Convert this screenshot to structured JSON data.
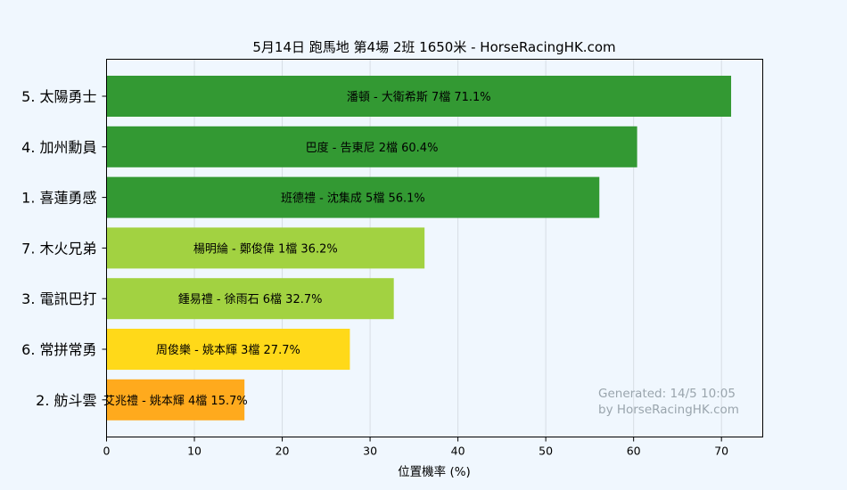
{
  "chart_data": {
    "type": "bar",
    "orientation": "horizontal",
    "title": "5月14日  跑馬地  第4場  2班  1650米 - HorseRacingHK.com",
    "xlabel": "位置機率 (%)",
    "ylabel": "",
    "xlim": [
      0,
      74.7
    ],
    "xticks": [
      0,
      10,
      20,
      30,
      40,
      50,
      60,
      70
    ],
    "grid": true,
    "categories": [
      "5. 太陽勇士",
      "4. 加州勳員",
      "1. 喜蓮勇感",
      "7. 木火兄弟",
      "3. 電訊巴打",
      "6. 常拼常勇",
      "2. 舫斗雲"
    ],
    "values": [
      71.1,
      60.4,
      56.1,
      36.2,
      32.7,
      27.7,
      15.7
    ],
    "bar_labels": [
      "潘頓 - 大衛希斯 7檔  71.1%",
      "巴度 - 告東尼 2檔  60.4%",
      "班德禮 - 沈集成 5檔  56.1%",
      "楊明綸 - 鄭俊偉 1檔  36.2%",
      "鍾易禮 - 徐雨石 6檔  32.7%",
      "周俊樂 - 姚本輝 3檔  27.7%",
      "艾兆禮 - 姚本輝 4檔  15.7%"
    ],
    "colors": [
      "#339933",
      "#339933",
      "#339933",
      "#a2d241",
      "#a2d241",
      "#ffd919",
      "#ffaa1d"
    ]
  },
  "watermark": {
    "line1": "Generated: 14/5 10:05",
    "line2": "by HorseRacingHK.com"
  }
}
